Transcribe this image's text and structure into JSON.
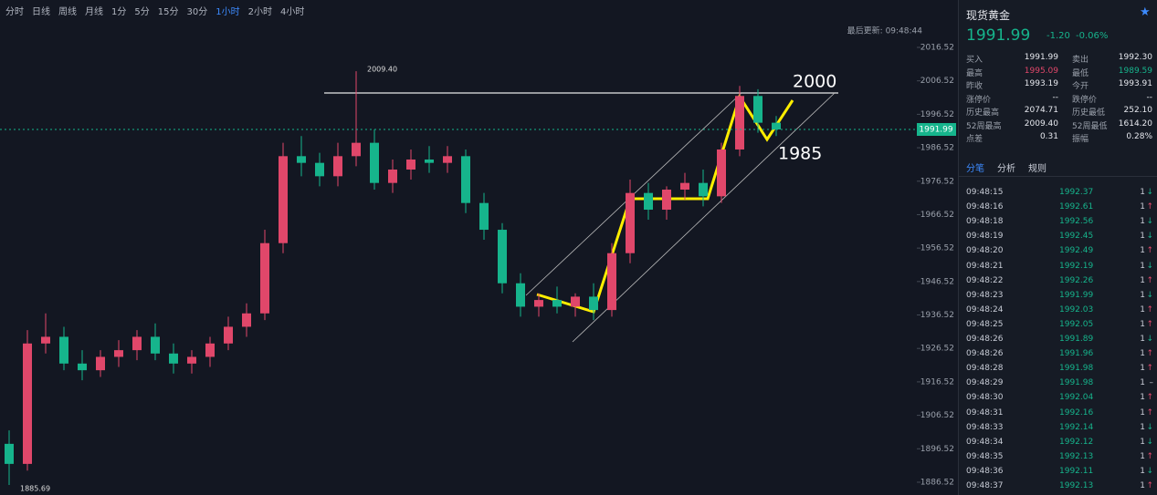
{
  "toolbar": {
    "periods": [
      "分时",
      "日线",
      "周线",
      "月线",
      "1分",
      "5分",
      "15分",
      "30分",
      "1小时",
      "2小时",
      "4小时"
    ],
    "active": 8,
    "updated": "最后更新: 09:48:44"
  },
  "chart_data": {
    "type": "candlestick",
    "ylim": [
      1882.7,
      2023.06
    ],
    "yticks": [
      2016.52,
      2006.52,
      1996.52,
      1986.52,
      1976.52,
      1966.52,
      1956.52,
      1946.52,
      1936.52,
      1926.52,
      1916.52,
      1906.52,
      1896.52,
      1886.52
    ],
    "up_color": "#e0476a",
    "down_color": "#16b48c",
    "open": [
      1898,
      1892,
      1928,
      1930,
      1922,
      1920,
      1924,
      1926,
      1930,
      1925,
      1922,
      1924,
      1928,
      1933,
      1937,
      1958,
      1984,
      1982,
      1978,
      1984,
      1988,
      1976,
      1980,
      1983,
      1982,
      1984,
      1970,
      1962,
      1946,
      1939,
      1941,
      1939,
      1942,
      1938,
      1955,
      1973,
      1968,
      1974,
      1976,
      1972,
      1986,
      2002,
      1994
    ],
    "high": [
      1902,
      1932,
      1937,
      1933,
      1926,
      1926,
      1929,
      1932,
      1934,
      1928,
      1926,
      1930,
      1936,
      1940,
      1962,
      1988,
      1990,
      1985,
      1988,
      2009.4,
      1992,
      1983,
      1986,
      1987,
      1987,
      1986,
      1973,
      1964,
      1949,
      1943,
      1945,
      1943,
      1946,
      1958,
      1977,
      1976,
      1975,
      1979,
      1980,
      1988,
      2005,
      2004,
      1996
    ],
    "low": [
      1885.69,
      1890,
      1925,
      1920,
      1917,
      1918,
      1921,
      1923,
      1923,
      1919,
      1919,
      1921,
      1926,
      1930,
      1935,
      1955,
      1978,
      1975,
      1975,
      1981,
      1974,
      1973,
      1977,
      1979,
      1979,
      1967,
      1959,
      1943,
      1936,
      1936,
      1937,
      1936,
      1935,
      1936,
      1952,
      1965,
      1965,
      1971,
      1969,
      1970,
      1984,
      1991,
      1990
    ],
    "close": [
      1892,
      1928,
      1930,
      1922,
      1920,
      1924,
      1926,
      1930,
      1925,
      1922,
      1924,
      1928,
      1933,
      1937,
      1958,
      1984,
      1982,
      1978,
      1984,
      1988,
      1976,
      1980,
      1983,
      1982,
      1984,
      1970,
      1962,
      1946,
      1939,
      1941,
      1939,
      1942,
      1938,
      1955,
      1973,
      1968,
      1974,
      1976,
      1972,
      1986,
      2002,
      1994,
      1991.99
    ],
    "last_price": 1991.99,
    "annotations": [
      "2009.40",
      "1885.69",
      "2000",
      "1985"
    ]
  },
  "quote": {
    "name": "现货黄金",
    "price": "1991.99",
    "change": "-1.20",
    "pct": "-0.06%",
    "stats": [
      [
        "买入",
        "1991.99",
        "卖出",
        "1992.30"
      ],
      [
        "最高",
        "1995.09",
        "最低",
        "1989.59"
      ],
      [
        "昨收",
        "1993.19",
        "今开",
        "1993.91"
      ],
      [
        "涨停价",
        "--",
        "跌停价",
        "--"
      ],
      [
        "历史最高",
        "2074.71",
        "历史最低",
        "252.10"
      ],
      [
        "52周最高",
        "2009.40",
        "52周最低",
        "1614.20"
      ],
      [
        "点差",
        "0.31",
        "振幅",
        "0.28%"
      ]
    ]
  },
  "tabs": [
    "分笔",
    "分析",
    "规则"
  ],
  "trades": [
    [
      "09:48:15",
      "1992.37",
      "1",
      "↓"
    ],
    [
      "09:48:16",
      "1992.61",
      "1",
      "↑"
    ],
    [
      "09:48:18",
      "1992.56",
      "1",
      "↓"
    ],
    [
      "09:48:19",
      "1992.45",
      "1",
      "↓"
    ],
    [
      "09:48:20",
      "1992.49",
      "1",
      "↑"
    ],
    [
      "09:48:21",
      "1992.19",
      "1",
      "↓"
    ],
    [
      "09:48:22",
      "1992.26",
      "1",
      "↑"
    ],
    [
      "09:48:23",
      "1991.99",
      "1",
      "↓"
    ],
    [
      "09:48:24",
      "1992.03",
      "1",
      "↑"
    ],
    [
      "09:48:25",
      "1992.05",
      "1",
      "↑"
    ],
    [
      "09:48:26",
      "1991.89",
      "1",
      "↓"
    ],
    [
      "09:48:26",
      "1991.96",
      "1",
      "↑"
    ],
    [
      "09:48:28",
      "1991.98",
      "1",
      "↑"
    ],
    [
      "09:48:29",
      "1991.98",
      "1",
      "–"
    ],
    [
      "09:48:30",
      "1992.04",
      "1",
      "↑"
    ],
    [
      "09:48:31",
      "1992.16",
      "1",
      "↑"
    ],
    [
      "09:48:33",
      "1992.14",
      "1",
      "↓"
    ],
    [
      "09:48:34",
      "1992.12",
      "1",
      "↓"
    ],
    [
      "09:48:35",
      "1992.13",
      "1",
      "↑"
    ],
    [
      "09:48:36",
      "1992.11",
      "1",
      "↓"
    ],
    [
      "09:48:37",
      "1992.13",
      "1",
      "↑"
    ]
  ]
}
